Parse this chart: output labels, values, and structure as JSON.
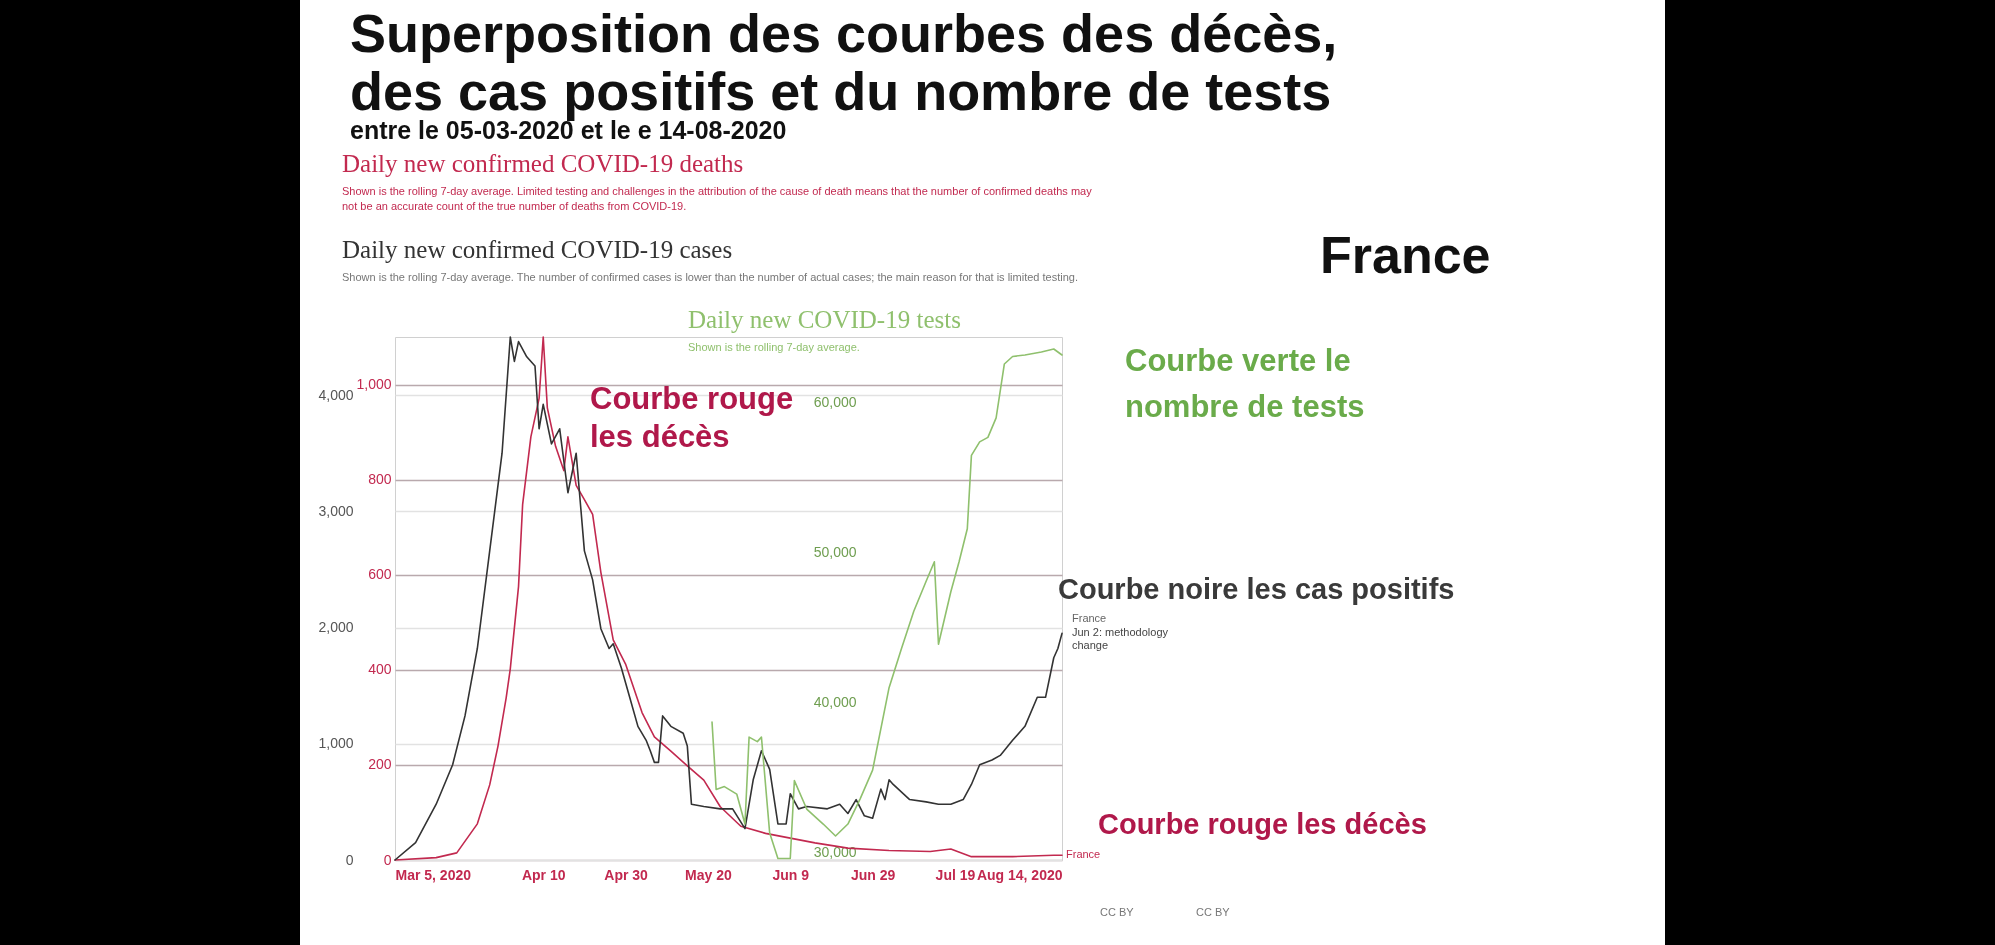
{
  "chart_data": {
    "type": "line",
    "title": "Superposition des courbes des décès, des cas positifs et du nombre de tests",
    "subtitle": "entre le 05-03-2020 et le e 14-08-2020",
    "xlim": [
      "2020-03-05",
      "2020-08-14"
    ],
    "xticks": [
      {
        "value": "2020-03-05",
        "label": "Mar 5, 2020"
      },
      {
        "value": "2020-04-10",
        "label": "Apr 10"
      },
      {
        "value": "2020-04-30",
        "label": "Apr 30"
      },
      {
        "value": "2020-05-20",
        "label": "May 20"
      },
      {
        "value": "2020-06-09",
        "label": "Jun 9"
      },
      {
        "value": "2020-06-29",
        "label": "Jun 29"
      },
      {
        "value": "2020-07-19",
        "label": "Jul 19"
      },
      {
        "value": "2020-08-14",
        "label": "Aug 14, 2020"
      }
    ],
    "ylim": [
      0,
      1100
    ],
    "yticks": [
      0,
      200,
      400,
      600,
      800,
      {
        "value": 1000,
        "label": "1,000"
      }
    ],
    "y2lim": [
      0,
      4500
    ],
    "y2ticks": [
      0,
      {
        "value": 1000,
        "label": "1,000"
      },
      {
        "value": 2000,
        "label": "2,000"
      },
      {
        "value": 3000,
        "label": "3,000"
      },
      {
        "value": 4000,
        "label": "4,000"
      }
    ],
    "y3lim": [
      29500,
      64400
    ],
    "y3ticks": [
      {
        "value": 30000,
        "label": "30,000"
      },
      {
        "value": 40000,
        "label": "40,000"
      },
      {
        "value": 50000,
        "label": "50,000"
      },
      {
        "value": 60000,
        "label": "60,000"
      }
    ],
    "grid": "y",
    "series": [
      {
        "name": "Daily new confirmed COVID-19 deaths",
        "color": "#c2294f",
        "axis": "y",
        "x": [
          "2020-03-05",
          "2020-03-15",
          "2020-03-20",
          "2020-03-25",
          "2020-03-28",
          "2020-03-30",
          "2020-04-01",
          "2020-04-02",
          "2020-04-04",
          "2020-04-05",
          "2020-04-07",
          "2020-04-09",
          "2020-04-10",
          "2020-04-11",
          "2020-04-13",
          "2020-04-15",
          "2020-04-16",
          "2020-04-18",
          "2020-04-20",
          "2020-04-22",
          "2020-04-24",
          "2020-04-27",
          "2020-04-30",
          "2020-05-04",
          "2020-05-07",
          "2020-05-11",
          "2020-05-15",
          "2020-05-19",
          "2020-05-23",
          "2020-05-28",
          "2020-06-03",
          "2020-06-09",
          "2020-06-15",
          "2020-06-23",
          "2020-07-03",
          "2020-07-13",
          "2020-07-18",
          "2020-07-23",
          "2020-08-02",
          "2020-08-12",
          "2020-08-14"
        ],
        "values": [
          0,
          5,
          15,
          76,
          158,
          239,
          341,
          402,
          575,
          748,
          890,
          971,
          1100,
          951,
          870,
          819,
          890,
          788,
          758,
          727,
          605,
          463,
          412,
          310,
          259,
          229,
          198,
          168,
          112,
          71,
          56,
          46,
          36,
          25,
          20,
          18,
          23,
          7,
          7,
          10,
          10
        ]
      },
      {
        "name": "Daily new confirmed COVID-19 cases",
        "color": "#333333",
        "axis": "y2",
        "x": [
          "2020-03-05",
          "2020-03-10",
          "2020-03-15",
          "2020-03-19",
          "2020-03-22",
          "2020-03-25",
          "2020-03-28",
          "2020-03-31",
          "2020-04-02",
          "2020-04-03",
          "2020-04-04",
          "2020-04-06",
          "2020-04-08",
          "2020-04-09",
          "2020-04-10",
          "2020-04-12",
          "2020-04-14",
          "2020-04-16",
          "2020-04-18",
          "2020-04-20",
          "2020-04-22",
          "2020-04-24",
          "2020-04-26",
          "2020-04-27",
          "2020-04-29",
          "2020-05-01",
          "2020-05-03",
          "2020-05-05",
          "2020-05-06",
          "2020-05-07",
          "2020-05-08",
          "2020-05-09",
          "2020-05-11",
          "2020-05-14",
          "2020-05-15",
          "2020-05-16",
          "2020-05-19",
          "2020-05-23",
          "2020-05-26",
          "2020-05-29",
          "2020-05-31",
          "2020-06-02",
          "2020-06-04",
          "2020-06-06",
          "2020-06-08",
          "2020-06-09",
          "2020-06-11",
          "2020-06-13",
          "2020-06-18",
          "2020-06-21",
          "2020-06-23",
          "2020-06-25",
          "2020-06-27",
          "2020-06-29",
          "2020-07-01",
          "2020-07-02",
          "2020-07-03",
          "2020-07-04",
          "2020-07-08",
          "2020-07-12",
          "2020-07-15",
          "2020-07-18",
          "2020-07-21",
          "2020-07-23",
          "2020-07-25",
          "2020-07-28",
          "2020-07-30",
          "2020-08-02",
          "2020-08-05",
          "2020-08-08",
          "2020-08-10",
          "2020-08-12",
          "2020-08-13",
          "2020-08-14"
        ],
        "values": [
          0,
          150,
          480,
          820,
          1240,
          1820,
          2660,
          3500,
          4500,
          4290,
          4460,
          4330,
          4250,
          3710,
          3920,
          3580,
          3710,
          3160,
          3500,
          2660,
          2410,
          1990,
          1820,
          1860,
          1650,
          1400,
          1150,
          1030,
          940,
          840,
          840,
          1240,
          1150,
          1090,
          980,
          480,
          460,
          440,
          440,
          270,
          690,
          940,
          780,
          310,
          310,
          570,
          440,
          460,
          440,
          480,
          400,
          520,
          380,
          360,
          610,
          520,
          690,
          650,
          520,
          500,
          480,
          480,
          520,
          650,
          820,
          860,
          900,
          1030,
          1150,
          1400,
          1400,
          1740,
          1820,
          1950
        ]
      },
      {
        "name": "Daily new COVID-19 tests",
        "color": "#8fc06d",
        "axis": "y3",
        "x": [
          "2020-05-21",
          "2020-05-22",
          "2020-05-24",
          "2020-05-27",
          "2020-05-29",
          "2020-05-30",
          "2020-06-01",
          "2020-06-02",
          "2020-06-04",
          "2020-06-06",
          "2020-06-09",
          "2020-06-10",
          "2020-06-13",
          "2020-06-17",
          "2020-06-20",
          "2020-06-23",
          "2020-06-26",
          "2020-06-29",
          "2020-07-03",
          "2020-07-06",
          "2020-07-09",
          "2020-07-12",
          "2020-07-14",
          "2020-07-15",
          "2020-07-18",
          "2020-07-20",
          "2020-07-22",
          "2020-07-23",
          "2020-07-25",
          "2020-07-27",
          "2020-07-29",
          "2020-07-31",
          "2020-08-02",
          "2020-08-05",
          "2020-08-09",
          "2020-08-12",
          "2020-08-14"
        ],
        "values": [
          38700,
          34200,
          34400,
          33900,
          31900,
          37700,
          37400,
          37700,
          31300,
          29600,
          29600,
          34800,
          32900,
          31900,
          31100,
          31900,
          33600,
          35500,
          41000,
          43600,
          46100,
          48100,
          49400,
          43900,
          47400,
          49400,
          51600,
          56500,
          57400,
          57700,
          59000,
          62600,
          63100,
          63200,
          63400,
          63600,
          63200
        ]
      }
    ],
    "annotations": [
      "Shown is the rolling 7-day average. Limited testing and challenges in the attribution of the cause of death means that the number of confirmed deaths may not be an accurate count of the true number of deaths from COVID-19.",
      "Shown is the rolling 7-day average. The number of confirmed cases is lower than the number of actual cases; the main reason for that is limited testing.",
      "Shown is the rolling 7-day average.",
      "France",
      "Courbe rouge les décès",
      "Courbe verte le nombre de tests",
      "Courbe noire les cas positifs",
      "Courbe rouge les décès",
      "France",
      "Jun 2: methodology change",
      "France",
      "CC BY",
      "CC BY"
    ]
  }
}
